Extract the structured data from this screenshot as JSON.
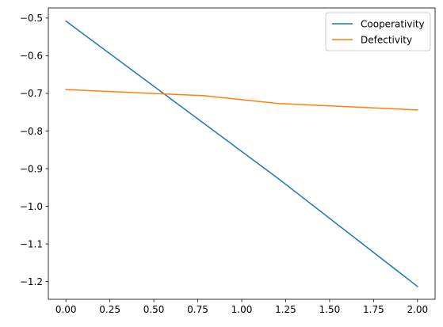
{
  "chart_data": {
    "type": "line",
    "title": "",
    "xlabel": "",
    "ylabel": "",
    "xlim": [
      -0.1,
      2.1
    ],
    "ylim": [
      -1.247,
      -0.473
    ],
    "xticks": [
      0.0,
      0.25,
      0.5,
      0.75,
      1.0,
      1.25,
      1.5,
      1.75,
      2.0
    ],
    "xtick_labels": [
      "0.00",
      "0.25",
      "0.50",
      "0.75",
      "1.00",
      "1.25",
      "1.50",
      "1.75",
      "2.00"
    ],
    "yticks": [
      -0.5,
      -0.6,
      -0.7,
      -0.8,
      -0.9,
      -1.0,
      -1.1,
      -1.2
    ],
    "ytick_labels": [
      "−0.5",
      "−0.6",
      "−0.7",
      "−0.8",
      "−0.9",
      "−1.0",
      "−1.1",
      "−1.2"
    ],
    "grid": false,
    "legend_position": "upper right",
    "series": [
      {
        "name": "Cooperativity",
        "color": "#1f77b4",
        "x": [
          0.0,
          1.21,
          2.0
        ],
        "y": [
          -0.508,
          -0.927,
          -1.213
        ]
      },
      {
        "name": "Defectivity",
        "color": "#ff7f0e",
        "x": [
          0.0,
          0.78,
          1.21,
          2.0
        ],
        "y": [
          -0.69,
          -0.706,
          -0.727,
          -0.744
        ]
      }
    ]
  }
}
